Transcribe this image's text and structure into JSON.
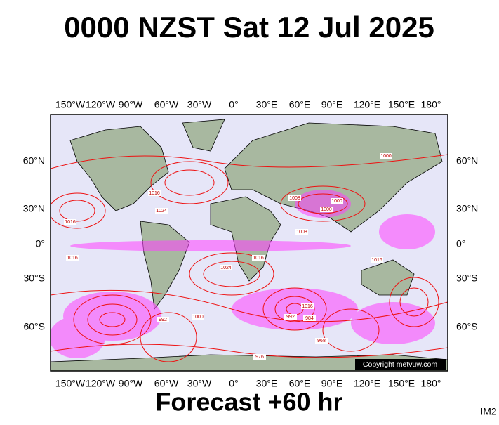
{
  "title": "0000 NZST Sat 12 Jul 2025",
  "map": {
    "longitude_labels": [
      "150°W",
      "120°W",
      "90°W",
      "60°W",
      "30°W",
      "0°",
      "30°E",
      "60°E",
      "90°E",
      "120°E",
      "150°E",
      "180°"
    ],
    "latitude_labels": [
      "60°N",
      "30°N",
      "0°",
      "30°S",
      "60°S"
    ],
    "isobar_labels": [
      "1016",
      "1016",
      "1016",
      "1024",
      "1008",
      "1000",
      "1000",
      "1008",
      "1016",
      "1024",
      "1000",
      "992",
      "984",
      "992",
      "1016",
      "968",
      "976",
      "1000",
      "1016"
    ],
    "copyright": "Copyright metvuw.com"
  },
  "forecast": "Forecast +60 hr",
  "image_id": "IM2"
}
